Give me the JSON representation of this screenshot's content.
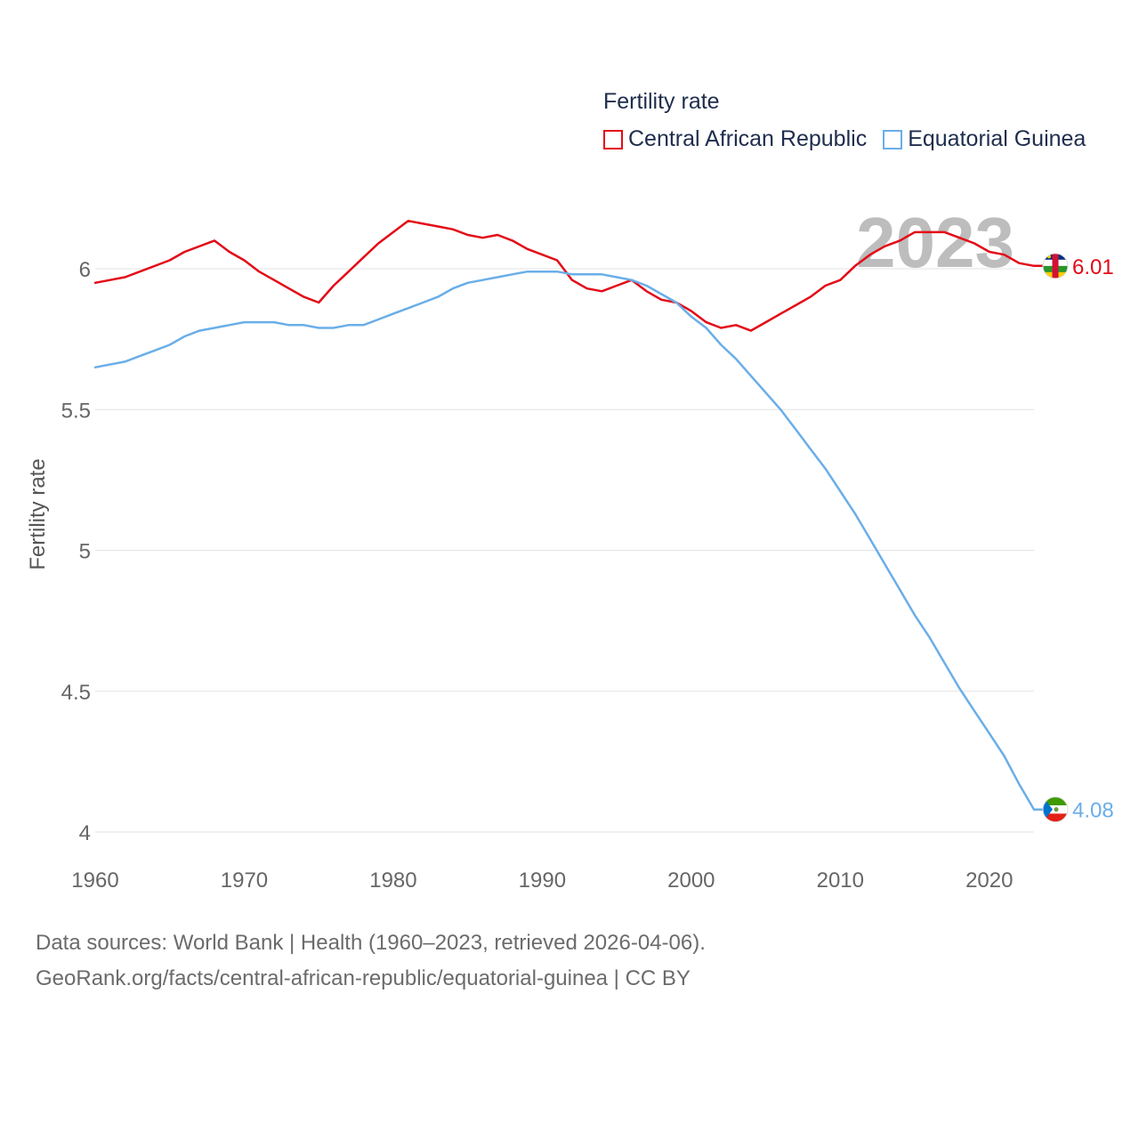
{
  "legend": {
    "title": "Fertility rate",
    "series": [
      {
        "name": "Central African Republic",
        "color": "#e30b17"
      },
      {
        "name": "Equatorial Guinea",
        "color": "#6aaee8"
      }
    ]
  },
  "year_label": "2023",
  "source": {
    "line1": "Data sources: World Bank | Health (1960–2023, retrieved 2026-04-06).",
    "line2": "GeoRank.org/facts/central-african-republic/equatorial-guinea | CC BY"
  },
  "chart_data": {
    "type": "line",
    "ylabel": "Fertility rate",
    "xlabel": "",
    "xlim": [
      1960,
      2023
    ],
    "ylim": [
      4,
      6.2
    ],
    "xticks": [
      "1960",
      "1970",
      "1980",
      "1990",
      "2000",
      "2010",
      "2020"
    ],
    "yticks": [
      "4",
      "4.5",
      "5",
      "5.5",
      "6"
    ],
    "grid": true,
    "legend_position": "top-right",
    "end_labels": [
      "6.01",
      "4.08"
    ],
    "series": [
      {
        "name": "Central African Republic",
        "color": "#e30b17",
        "points": [
          [
            1960,
            5.95
          ],
          [
            1962,
            5.97
          ],
          [
            1963,
            5.99
          ],
          [
            1965,
            6.03
          ],
          [
            1966,
            6.06
          ],
          [
            1968,
            6.1
          ],
          [
            1969,
            6.06
          ],
          [
            1970,
            6.03
          ],
          [
            1971,
            5.99
          ],
          [
            1972,
            5.96
          ],
          [
            1973,
            5.93
          ],
          [
            1974,
            5.9
          ],
          [
            1975,
            5.88
          ],
          [
            1976,
            5.94
          ],
          [
            1977,
            5.99
          ],
          [
            1978,
            6.04
          ],
          [
            1979,
            6.09
          ],
          [
            1980,
            6.13
          ],
          [
            1981,
            6.17
          ],
          [
            1982,
            6.16
          ],
          [
            1983,
            6.15
          ],
          [
            1984,
            6.14
          ],
          [
            1985,
            6.12
          ],
          [
            1986,
            6.11
          ],
          [
            1987,
            6.12
          ],
          [
            1988,
            6.1
          ],
          [
            1989,
            6.07
          ],
          [
            1990,
            6.05
          ],
          [
            1991,
            6.03
          ],
          [
            1992,
            5.96
          ],
          [
            1993,
            5.93
          ],
          [
            1994,
            5.92
          ],
          [
            1995,
            5.94
          ],
          [
            1996,
            5.96
          ],
          [
            1997,
            5.92
          ],
          [
            1998,
            5.89
          ],
          [
            1999,
            5.88
          ],
          [
            2000,
            5.85
          ],
          [
            2001,
            5.81
          ],
          [
            2002,
            5.79
          ],
          [
            2003,
            5.8
          ],
          [
            2004,
            5.78
          ],
          [
            2005,
            5.81
          ],
          [
            2006,
            5.84
          ],
          [
            2007,
            5.87
          ],
          [
            2008,
            5.9
          ],
          [
            2009,
            5.94
          ],
          [
            2010,
            5.96
          ],
          [
            2011,
            6.01
          ],
          [
            2012,
            6.05
          ],
          [
            2013,
            6.08
          ],
          [
            2014,
            6.1
          ],
          [
            2015,
            6.13
          ],
          [
            2016,
            6.13
          ],
          [
            2017,
            6.13
          ],
          [
            2018,
            6.11
          ],
          [
            2019,
            6.09
          ],
          [
            2020,
            6.06
          ],
          [
            2021,
            6.05
          ],
          [
            2022,
            6.02
          ],
          [
            2023,
            6.01
          ]
        ]
      },
      {
        "name": "Equatorial Guinea",
        "color": "#6aaee8",
        "points": [
          [
            1960,
            5.65
          ],
          [
            1962,
            5.67
          ],
          [
            1963,
            5.69
          ],
          [
            1964,
            5.71
          ],
          [
            1965,
            5.73
          ],
          [
            1966,
            5.76
          ],
          [
            1967,
            5.78
          ],
          [
            1968,
            5.79
          ],
          [
            1969,
            5.8
          ],
          [
            1970,
            5.81
          ],
          [
            1971,
            5.81
          ],
          [
            1972,
            5.81
          ],
          [
            1973,
            5.8
          ],
          [
            1974,
            5.8
          ],
          [
            1975,
            5.79
          ],
          [
            1976,
            5.79
          ],
          [
            1977,
            5.8
          ],
          [
            1978,
            5.8
          ],
          [
            1979,
            5.82
          ],
          [
            1980,
            5.84
          ],
          [
            1981,
            5.86
          ],
          [
            1982,
            5.88
          ],
          [
            1983,
            5.9
          ],
          [
            1984,
            5.93
          ],
          [
            1985,
            5.95
          ],
          [
            1986,
            5.96
          ],
          [
            1987,
            5.97
          ],
          [
            1988,
            5.98
          ],
          [
            1989,
            5.99
          ],
          [
            1990,
            5.99
          ],
          [
            1991,
            5.99
          ],
          [
            1992,
            5.98
          ],
          [
            1993,
            5.98
          ],
          [
            1994,
            5.98
          ],
          [
            1995,
            5.97
          ],
          [
            1996,
            5.96
          ],
          [
            1997,
            5.94
          ],
          [
            1998,
            5.91
          ],
          [
            1999,
            5.88
          ],
          [
            2000,
            5.83
          ],
          [
            2001,
            5.79
          ],
          [
            2002,
            5.73
          ],
          [
            2003,
            5.68
          ],
          [
            2004,
            5.62
          ],
          [
            2005,
            5.56
          ],
          [
            2006,
            5.5
          ],
          [
            2007,
            5.43
          ],
          [
            2008,
            5.36
          ],
          [
            2009,
            5.29
          ],
          [
            2010,
            5.21
          ],
          [
            2011,
            5.13
          ],
          [
            2012,
            5.04
          ],
          [
            2013,
            4.95
          ],
          [
            2014,
            4.86
          ],
          [
            2015,
            4.77
          ],
          [
            2016,
            4.69
          ],
          [
            2017,
            4.6
          ],
          [
            2018,
            4.51
          ],
          [
            2019,
            4.43
          ],
          [
            2020,
            4.35
          ],
          [
            2021,
            4.27
          ],
          [
            2022,
            4.17
          ],
          [
            2023,
            4.08
          ]
        ]
      }
    ]
  }
}
